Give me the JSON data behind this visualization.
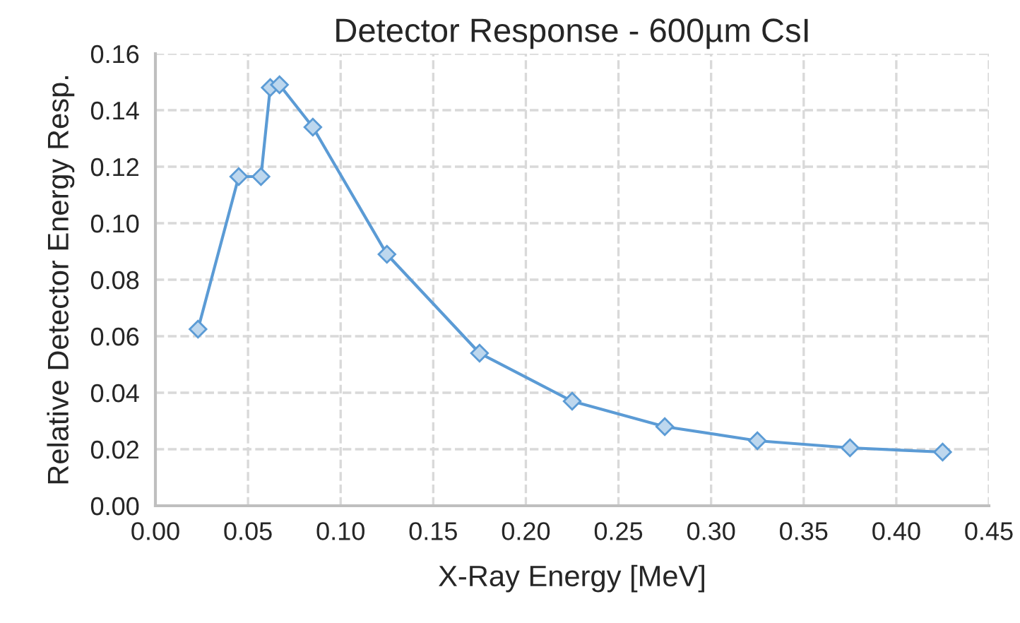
{
  "chart_data": {
    "type": "line",
    "title": "Detector Response - 600µm CsI",
    "xlabel": "X-Ray Energy [MeV]",
    "ylabel": "Relative Detector Energy Resp.",
    "x": [
      0.023,
      0.045,
      0.057,
      0.062,
      0.067,
      0.085,
      0.125,
      0.175,
      0.225,
      0.275,
      0.325,
      0.375,
      0.425
    ],
    "series": [
      {
        "color": "#5b9bd5",
        "values": [
          0.0625,
          0.1165,
          0.1165,
          0.148,
          0.149,
          0.134,
          0.089,
          0.054,
          0.037,
          0.028,
          0.023,
          0.0205,
          0.019
        ]
      }
    ],
    "xlim": [
      0,
      0.45
    ],
    "xticks": [
      {
        "value": 0,
        "label": "0.00"
      },
      {
        "value": 0.05,
        "label": "0.05"
      },
      {
        "value": 0.1,
        "label": "0.10"
      },
      {
        "value": 0.15,
        "label": "0.15"
      },
      {
        "value": 0.2,
        "label": "0.20"
      },
      {
        "value": 0.25,
        "label": "0.25"
      },
      {
        "value": 0.3,
        "label": "0.30"
      },
      {
        "value": 0.35,
        "label": "0.35"
      },
      {
        "value": 0.4,
        "label": "0.40"
      },
      {
        "value": 0.45,
        "label": "0.45"
      }
    ],
    "ylim": [
      0,
      0.16
    ],
    "yticks": [
      {
        "value": 0,
        "label": "0.00"
      },
      {
        "value": 0.02,
        "label": "0.02"
      },
      {
        "value": 0.04,
        "label": "0.04"
      },
      {
        "value": 0.06,
        "label": "0.06"
      },
      {
        "value": 0.08,
        "label": "0.08"
      },
      {
        "value": 0.1,
        "label": "0.10"
      },
      {
        "value": 0.12,
        "label": "0.12"
      },
      {
        "value": 0.14,
        "label": "0.14"
      },
      {
        "value": 0.16,
        "label": "0.16"
      }
    ],
    "grid": true,
    "marker": "diamond",
    "line_style": "solid"
  }
}
